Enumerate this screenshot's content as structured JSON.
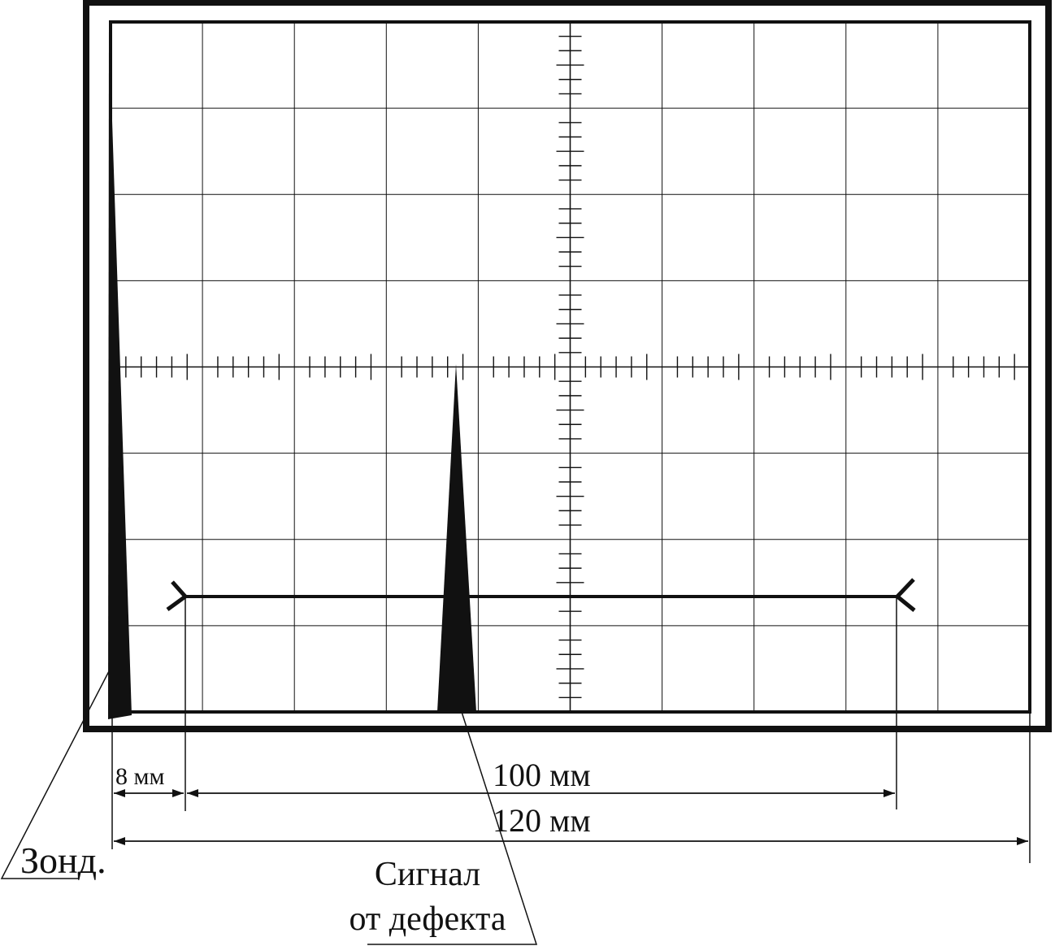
{
  "screen": {
    "grid_columns": 10,
    "grid_rows": 8,
    "x_ticks_per_division": 5,
    "y_ticks_per_division": 5
  },
  "signals": {
    "probe": {
      "label": "Зонд.",
      "position_mm": 0
    },
    "defect": {
      "label_line1": "Сигнал",
      "label_line2": "от дефекта"
    }
  },
  "dimensions": {
    "offset_label": "8 мм",
    "gate_label": "100 мм",
    "total_label": "120 мм",
    "offset_mm": 8,
    "gate_mm": 100,
    "total_mm": 120
  },
  "colors": {
    "ink": "#111111",
    "background": "#ffffff"
  }
}
